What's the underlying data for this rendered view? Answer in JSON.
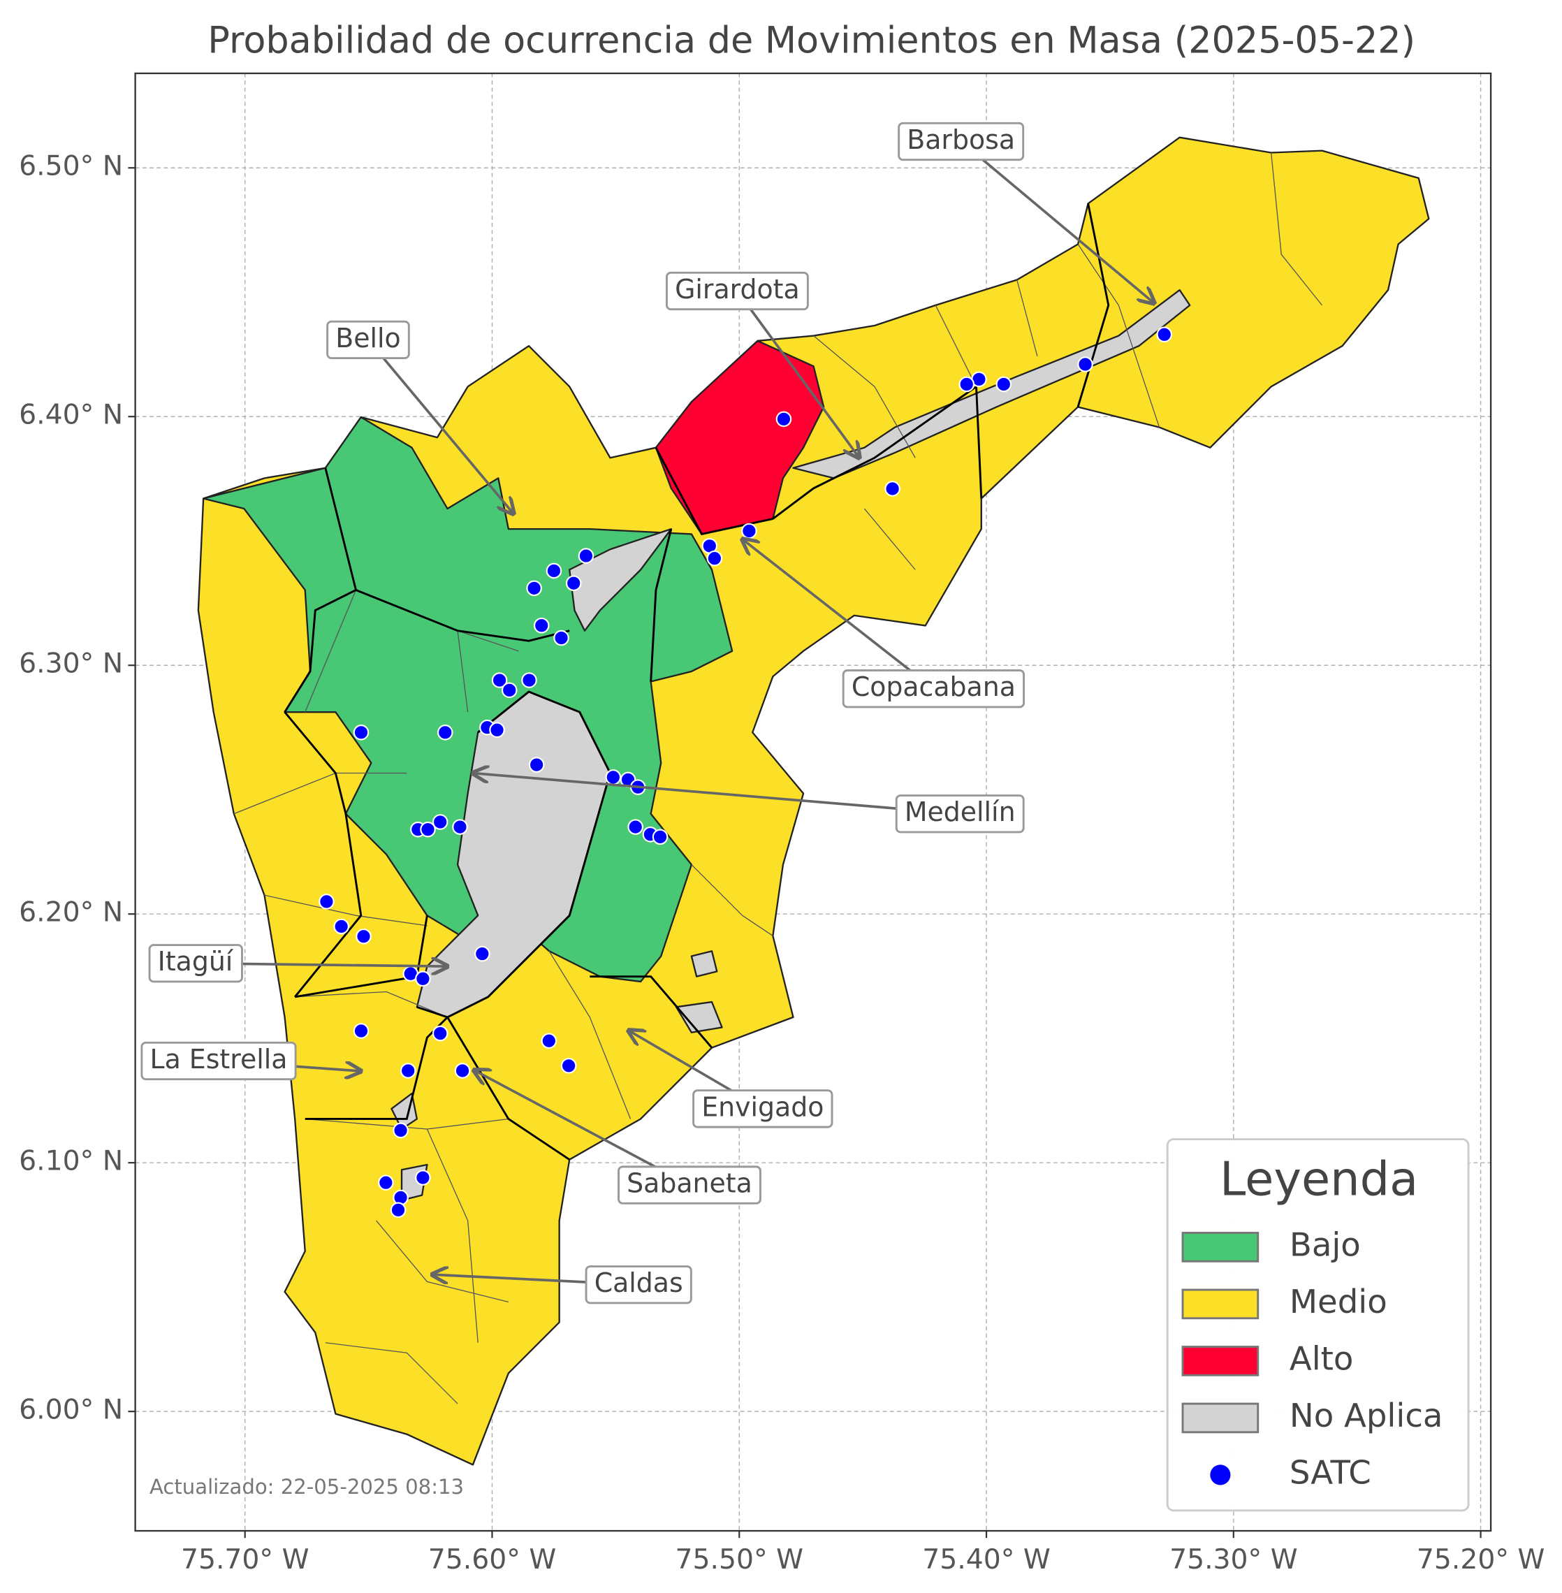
{
  "chart_data": {
    "type": "map",
    "title": "Probabilidad de ocurrencia de Movimientos en Masa (2025-05-22)",
    "footnote": "Actualizado: 22-05-2025 08:13",
    "xlim": [
      -75.7444,
      -75.1959
    ],
    "ylim": [
      5.952,
      6.538
    ],
    "xticks": [
      {
        "value": -75.7,
        "label": "75.70° W"
      },
      {
        "value": -75.6,
        "label": "75.60° W"
      },
      {
        "value": -75.5,
        "label": "75.50° W"
      },
      {
        "value": -75.4,
        "label": "75.40° W"
      },
      {
        "value": -75.3,
        "label": "75.30° W"
      },
      {
        "value": -75.2,
        "label": "75.20° W"
      }
    ],
    "yticks": [
      {
        "value": 6.0,
        "label": "6.00° N"
      },
      {
        "value": 6.1,
        "label": "6.10° N"
      },
      {
        "value": 6.2,
        "label": "6.20° N"
      },
      {
        "value": 6.3,
        "label": "6.30° N"
      },
      {
        "value": 6.4,
        "label": "6.40° N"
      },
      {
        "value": 6.5,
        "label": "6.50° N"
      }
    ],
    "grid": true,
    "legend": {
      "title": "Leyenda",
      "position": "lower right"
    },
    "regions": [
      {
        "name": "Bajo",
        "color": "#48c774"
      },
      {
        "name": "Medio",
        "color": "#fbe027"
      },
      {
        "name": "Alto",
        "color": "#ff0033"
      },
      {
        "name": "No Aplica",
        "color": "#d3d3d3"
      }
    ],
    "series": [
      {
        "name": "SATC",
        "color": "#0000ff",
        "x": [
          -75.328,
          -75.36,
          -75.393,
          -75.403,
          -75.408,
          -75.438,
          -75.482,
          -75.496,
          -75.512,
          -75.51,
          -75.562,
          -75.575,
          -75.567,
          -75.583,
          -75.58,
          -75.572,
          -75.597,
          -75.593,
          -75.585,
          -75.653,
          -75.619,
          -75.602,
          -75.598,
          -75.582,
          -75.551,
          -75.545,
          -75.541,
          -75.542,
          -75.536,
          -75.532,
          -75.621,
          -75.613,
          -75.63,
          -75.626,
          -75.667,
          -75.661,
          -75.652,
          -75.604,
          -75.633,
          -75.628,
          -75.653,
          -75.621,
          -75.577,
          -75.569,
          -75.612,
          -75.634,
          -75.637,
          -75.643,
          -75.628,
          -75.637,
          -75.638
        ],
        "y": [
          6.433,
          6.421,
          6.413,
          6.415,
          6.413,
          6.371,
          6.399,
          6.354,
          6.348,
          6.343,
          6.344,
          6.338,
          6.333,
          6.331,
          6.316,
          6.311,
          6.294,
          6.29,
          6.294,
          6.273,
          6.273,
          6.275,
          6.274,
          6.26,
          6.255,
          6.254,
          6.251,
          6.235,
          6.232,
          6.231,
          6.237,
          6.235,
          6.234,
          6.234,
          6.205,
          6.195,
          6.191,
          6.184,
          6.176,
          6.174,
          6.153,
          6.152,
          6.149,
          6.139,
          6.137,
          6.137,
          6.113,
          6.092,
          6.094,
          6.086,
          6.081
        ]
      }
    ],
    "annotations": [
      "Barbosa",
      "Girardota",
      "Bello",
      "Copacabana",
      "Medellín",
      "Itagüí",
      "La Estrella",
      "Envigado",
      "Sabaneta",
      "Caldas"
    ]
  }
}
